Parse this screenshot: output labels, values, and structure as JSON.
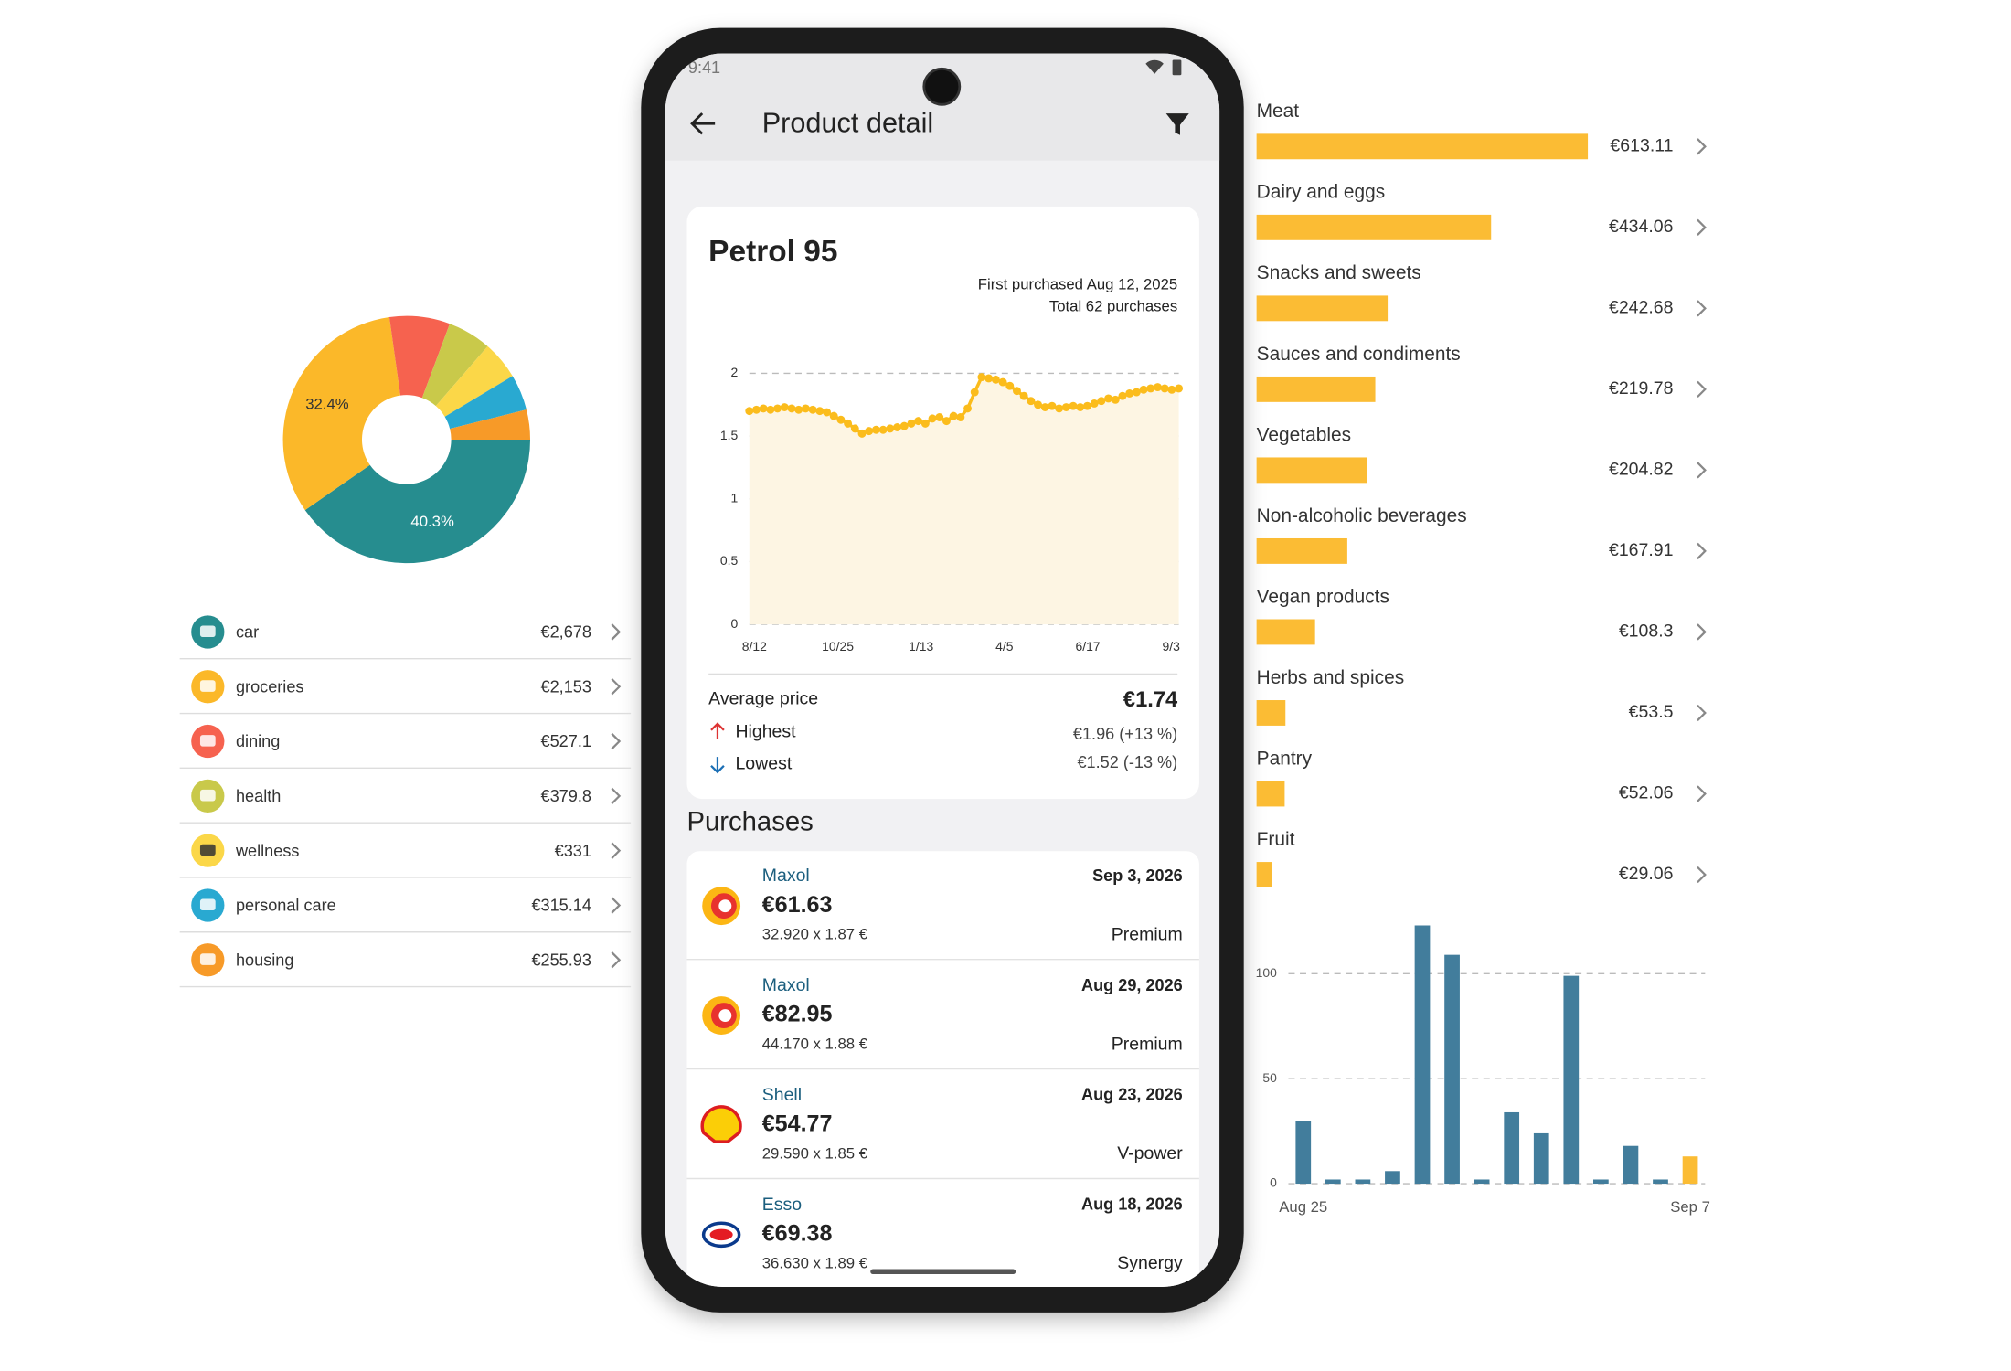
{
  "chart_data": [
    {
      "type": "pie",
      "values": [
        40.3,
        32.4,
        7.9,
        5.7,
        5.0,
        4.7,
        3.9
      ],
      "value_labels": [
        "40.3%",
        "32.4%",
        null,
        null,
        null,
        null,
        null
      ],
      "colors": [
        "#268d8f",
        "#fbb829",
        "#f6624f",
        "#c9c94a",
        "#fbd748",
        "#29a9d1",
        "#f79a28"
      ]
    },
    {
      "type": "line",
      "color": "#fbbc1c",
      "fill": "#fdf5e3",
      "ylim": [
        0,
        2
      ],
      "yticks": [
        0,
        0.5,
        1,
        1.5,
        2
      ],
      "grid": true,
      "x_labels": [
        "8/12",
        "10/25",
        "1/13",
        "4/5",
        "6/17",
        "9/3"
      ],
      "values": [
        1.7,
        1.71,
        1.72,
        1.71,
        1.72,
        1.73,
        1.72,
        1.71,
        1.72,
        1.71,
        1.7,
        1.69,
        1.66,
        1.63,
        1.6,
        1.56,
        1.52,
        1.54,
        1.55,
        1.55,
        1.56,
        1.57,
        1.58,
        1.6,
        1.62,
        1.6,
        1.64,
        1.65,
        1.62,
        1.66,
        1.65,
        1.72,
        1.85,
        1.97,
        1.96,
        1.95,
        1.93,
        1.9,
        1.86,
        1.82,
        1.78,
        1.75,
        1.73,
        1.74,
        1.72,
        1.73,
        1.74,
        1.73,
        1.74,
        1.76,
        1.78,
        1.8,
        1.79,
        1.82,
        1.84,
        1.85,
        1.87,
        1.88,
        1.89,
        1.88,
        1.87,
        1.88
      ]
    },
    {
      "type": "hbar",
      "color": "#fbbc34",
      "categories": [
        "Meat",
        "Dairy and eggs",
        "Snacks and sweets",
        "Sauces and condiments",
        "Vegetables",
        "Non-alcoholic beverages",
        "Vegan products",
        "Herbs and spices",
        "Pantry",
        "Fruit"
      ],
      "values": [
        613.11,
        434.06,
        242.68,
        219.78,
        204.82,
        167.91,
        108.3,
        53.5,
        52.06,
        29.06
      ],
      "value_labels": [
        "€613.11",
        "€434.06",
        "€242.68",
        "€219.78",
        "€204.82",
        "€167.91",
        "€108.3",
        "€53.5",
        "€52.06",
        "€29.06"
      ]
    },
    {
      "type": "bar",
      "ylim": [
        0,
        125
      ],
      "yticks": [
        0,
        50,
        100
      ],
      "grid": true,
      "categories": [
        "Aug 25",
        null,
        null,
        null,
        null,
        null,
        null,
        null,
        null,
        null,
        null,
        null,
        null,
        "Sep 7"
      ],
      "values": [
        30,
        2,
        2,
        6,
        123,
        109,
        2,
        34,
        24,
        99,
        2,
        18,
        2,
        13
      ],
      "colors": [
        "#427d9c",
        "#427d9c",
        "#427d9c",
        "#427d9c",
        "#427d9c",
        "#427d9c",
        "#427d9c",
        "#427d9c",
        "#427d9c",
        "#427d9c",
        "#427d9c",
        "#427d9c",
        "#427d9c",
        "#fbbc34"
      ]
    }
  ],
  "expenses": [
    {
      "name": "car",
      "amount": "€2,678"
    },
    {
      "name": "groceries",
      "amount": "€2,153"
    },
    {
      "name": "dining",
      "amount": "€527.1"
    },
    {
      "name": "health",
      "amount": "€379.8"
    },
    {
      "name": "wellness",
      "amount": "€331"
    },
    {
      "name": "personal care",
      "amount": "€315.14"
    },
    {
      "name": "housing",
      "amount": "€255.93"
    }
  ],
  "phone": {
    "status_time": "9:41",
    "title": "Product detail",
    "product": "Petrol 95",
    "first_purchased": "First purchased Aug 12, 2025",
    "total": "Total 62 purchases",
    "stats": {
      "average_label": "Average price",
      "average": "€1.74",
      "highest_label": "Highest",
      "highest": "€1.96 (+13 %)",
      "lowest_label": "Lowest",
      "lowest": "€1.52 (-13 %)"
    },
    "purchases_heading": "Purchases",
    "purchases": [
      {
        "station": "Maxol",
        "date": "Sep 3, 2026",
        "total": "€61.63",
        "quantity": "32.920 x 1.87 €",
        "grade": "Premium"
      },
      {
        "station": "Maxol",
        "date": "Aug 29, 2026",
        "total": "€82.95",
        "quantity": "44.170 x 1.88 €",
        "grade": "Premium"
      },
      {
        "station": "Shell",
        "date": "Aug 23, 2026",
        "total": "€54.77",
        "quantity": "29.590 x 1.85 €",
        "grade": "V-power"
      },
      {
        "station": "Esso",
        "date": "Aug 18, 2026",
        "total": "€69.38",
        "quantity": "36.630 x 1.89 €",
        "grade": "Synergy"
      }
    ]
  }
}
